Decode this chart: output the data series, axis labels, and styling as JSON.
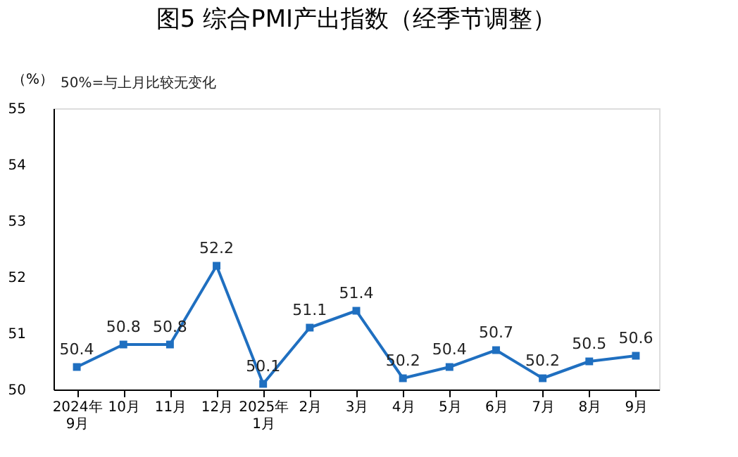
{
  "chart_data": {
    "type": "line",
    "title": "图5  综合PMI产出指数（经季节调整）",
    "ylabel": "（%）",
    "annotations": [
      "50%=与上月比较无变化"
    ],
    "categories": [
      "2024年\n9月",
      "10月",
      "11月",
      "12月",
      "2025年\n1月",
      "2月",
      "3月",
      "4月",
      "5月",
      "6月",
      "7月",
      "8月",
      "9月"
    ],
    "series": [
      {
        "color": "#1f6fc0",
        "values": [
          50.4,
          50.8,
          50.8,
          52.2,
          50.1,
          51.1,
          51.4,
          50.2,
          50.4,
          50.7,
          50.2,
          50.5,
          50.6
        ]
      }
    ],
    "ylim": [
      50,
      55
    ],
    "yticks": [
      50,
      51,
      52,
      53,
      54,
      55
    ],
    "grid": false,
    "legend": false,
    "marker": "square",
    "line_style": "solid",
    "data_labels": true
  }
}
